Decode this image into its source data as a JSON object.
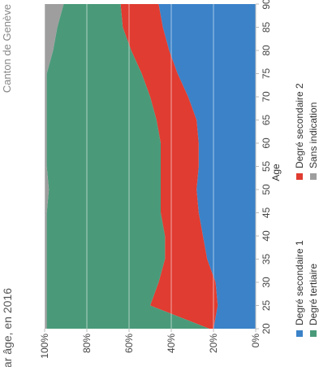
{
  "header": {
    "title_fragment": "par âge, en 2016",
    "source": "Canton de Genève"
  },
  "chart_data": {
    "type": "area",
    "stacked": true,
    "orientation": "rotated-90",
    "xlabel": "Age",
    "ylabel": "",
    "x": [
      20,
      25,
      30,
      35,
      40,
      45,
      50,
      55,
      60,
      65,
      70,
      75,
      80,
      85,
      90
    ],
    "ylim": [
      0,
      100
    ],
    "yticks": [
      "0%",
      "20%",
      "40%",
      "60%",
      "80%",
      "100%"
    ],
    "series": [
      {
        "name": "Degré secondaire 1",
        "color": "#3b82c8",
        "values": [
          20,
          18,
          19,
          23,
          25,
          27,
          28,
          27,
          27,
          28,
          32,
          37,
          41,
          44,
          46
        ]
      },
      {
        "name": "Degré secondaire 2",
        "color": "#e03c31",
        "values": [
          2,
          32,
          27,
          20,
          18,
          18,
          17,
          18,
          18,
          19,
          18,
          17,
          18,
          19,
          18
        ]
      },
      {
        "name": "Degré tertiaire",
        "color": "#4a9a7a",
        "values": [
          77,
          49,
          53,
          56,
          56,
          54,
          53,
          54,
          54,
          52,
          49,
          45,
          37,
          31,
          27
        ]
      },
      {
        "name": "Sans indication",
        "color": "#9e9e9e",
        "values": [
          1,
          1,
          1,
          1,
          1,
          1,
          2,
          1,
          1,
          1,
          1,
          1,
          4,
          6,
          9
        ]
      }
    ],
    "grid": true,
    "legend_position": "right"
  }
}
